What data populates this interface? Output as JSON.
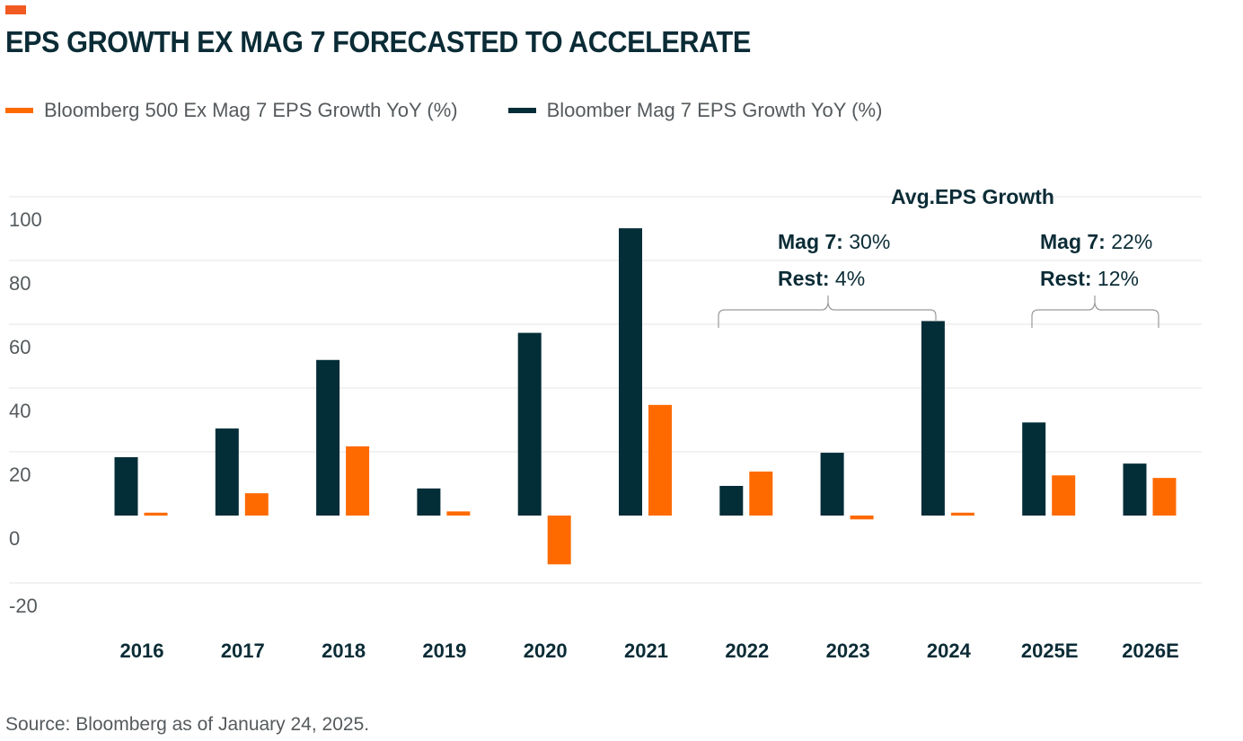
{
  "header": {
    "title": "EPS GROWTH EX MAG 7 FORECASTED TO ACCELERATE"
  },
  "colors": {
    "accent": "#f15a22",
    "ex_mag7": "#ff6a00",
    "mag7": "#032d37",
    "title": "#0b2c36",
    "grid": "#e6e6e6",
    "bracket": "#9a9a9a",
    "muted_text": "#555a5d"
  },
  "source": "Source: Bloomberg as of January 24, 2025.",
  "chart_data": {
    "type": "bar",
    "title": "EPS GROWTH EX MAG 7 FORECASTED TO ACCELERATE",
    "xlabel": "",
    "ylabel": "",
    "categories": [
      "2016",
      "2017",
      "2018",
      "2019",
      "2020",
      "2021",
      "2022",
      "2023",
      "2024",
      "2025E",
      "2026E"
    ],
    "series": [
      {
        "name": "Bloomber Mag 7 EPS Growth YoY (%)",
        "color": "#032d37",
        "values": [
          18.3,
          27.3,
          48.8,
          8.5,
          57.3,
          90.1,
          9.3,
          19.7,
          61.0,
          29.2,
          16.3
        ]
      },
      {
        "name": "Bloomberg 500 Ex Mag 7 EPS Growth YoY (%)",
        "color": "#ff6a00",
        "values": [
          0.9,
          7.0,
          21.7,
          1.3,
          -15.3,
          34.7,
          13.8,
          -1.2,
          0.9,
          12.6,
          11.8
        ]
      }
    ],
    "legend": [
      {
        "name": "Bloomberg 500 Ex Mag 7 EPS Growth YoY (%)",
        "color": "#ff6a00"
      },
      {
        "name": "Bloomber Mag 7 EPS Growth YoY (%)",
        "color": "#032d37"
      }
    ],
    "legend_position": "top-left",
    "yticks": [
      100,
      80,
      60,
      40,
      20,
      0,
      -20
    ],
    "ylim": [
      -21,
      100
    ],
    "grid": true,
    "annotations": {
      "heading": "Avg.EPS Growth",
      "groups": [
        {
          "range": [
            "2022",
            "2024"
          ],
          "mag7_label": "Mag 7:",
          "mag7_value": "30%",
          "rest_label": "Rest:",
          "rest_value": "4%"
        },
        {
          "range": [
            "2025E",
            "2026E"
          ],
          "mag7_label": "Mag 7:",
          "mag7_value": "22%",
          "rest_label": "Rest:",
          "rest_value": "12%"
        }
      ]
    }
  }
}
